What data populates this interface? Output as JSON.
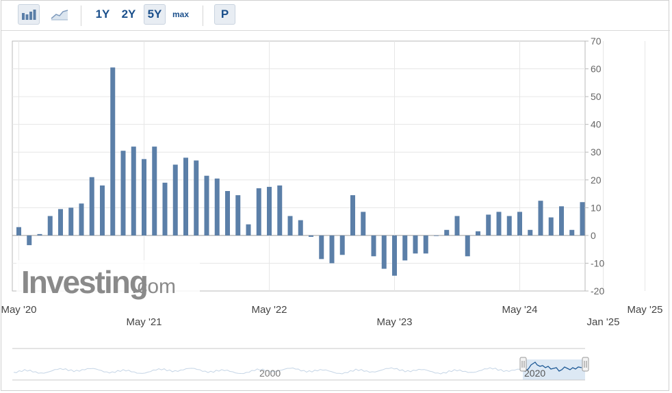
{
  "toolbar": {
    "buttons": [
      {
        "id": "bar-chart",
        "icon": "bar-chart-icon"
      },
      {
        "id": "area-chart",
        "icon": "area-chart-icon"
      },
      {
        "label": "1Y"
      },
      {
        "label": "2Y"
      },
      {
        "label": "5Y",
        "active": true
      },
      {
        "label": "max"
      },
      {
        "label": "P"
      }
    ]
  },
  "watermark": {
    "brand": "Investing",
    "suffix": ".com"
  },
  "navigator": {
    "labels": [
      "2000",
      "2020"
    ]
  },
  "colors": {
    "bar": "#5b7fa8",
    "grid": "#e6e6e6",
    "navigator_fill": "#dce8f4",
    "navigator_line": "#6f9bc6"
  },
  "chart_data": {
    "type": "bar",
    "title": "",
    "xlabel": "",
    "ylabel": "",
    "ylim": [
      -20,
      70
    ],
    "yticks": [
      70,
      60,
      50,
      40,
      30,
      20,
      10,
      0,
      -10,
      -20
    ],
    "grid": true,
    "x_tick_labels": [
      {
        "label": "May '20",
        "row": 1
      },
      {
        "label": "May '21",
        "row": 2
      },
      {
        "label": "May '22",
        "row": 1
      },
      {
        "label": "May '23",
        "row": 2
      },
      {
        "label": "May '24",
        "row": 1
      },
      {
        "label": "Jan '25",
        "row": 2
      },
      {
        "label": "May '25",
        "row": 1
      }
    ],
    "x_tick_index": [
      0,
      12,
      24,
      36,
      48,
      56,
      60
    ],
    "values": [
      3,
      -3.5,
      0.5,
      7,
      9.5,
      10,
      11.5,
      21,
      18,
      60.5,
      30.5,
      32,
      27.5,
      32,
      19,
      25.5,
      28,
      27,
      21.5,
      20.5,
      16,
      14.5,
      4,
      17,
      17.5,
      18,
      7,
      5.5,
      -0.5,
      -8.5,
      -10,
      -7,
      14.5,
      8.5,
      -7.5,
      -12,
      -14.5,
      -9,
      -6.5,
      -6.5,
      0,
      2,
      7,
      -7.5,
      1.5,
      7.5,
      8.5,
      7,
      8.5,
      2,
      12.5,
      6.5,
      10.5,
      2,
      12
    ]
  }
}
